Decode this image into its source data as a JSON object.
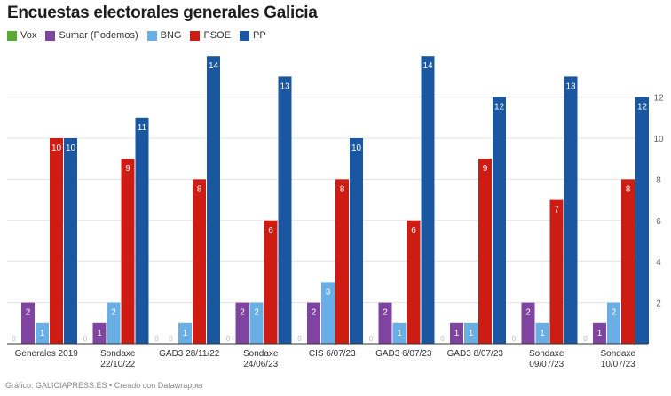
{
  "title": "Encuestas electorales generales Galicia",
  "footer": "Gráfico: GALICIAPRESS.ES • Creado con Datawrapper",
  "chart_data": {
    "type": "bar",
    "title": "Encuestas electorales generales Galicia",
    "categories": [
      "Generales 2019",
      "Sondaxe 22/10/22",
      "GAD3 28/11/22",
      "Sondaxe 24/06/23",
      "CIS 6/07/23",
      "GAD3 6/07/23",
      "GAD3 8/07/23",
      "Sondaxe 09/07/23",
      "Sondaxe 10/07/23"
    ],
    "series": [
      {
        "name": "Vox",
        "color": "#5aaa32",
        "values": [
          0,
          0,
          0,
          0,
          0,
          0,
          0,
          0,
          0
        ]
      },
      {
        "name": "Sumar (Podemos)",
        "color": "#7e44a0",
        "values": [
          2,
          1,
          0,
          2,
          2,
          2,
          1,
          2,
          1
        ]
      },
      {
        "name": "BNG",
        "color": "#6aaee6",
        "values": [
          1,
          2,
          1,
          2,
          3,
          1,
          1,
          1,
          2
        ]
      },
      {
        "name": "PSOE",
        "color": "#cc1c14",
        "values": [
          10,
          9,
          8,
          6,
          8,
          6,
          9,
          7,
          8
        ]
      },
      {
        "name": "PP",
        "color": "#1a57a0",
        "values": [
          10,
          11,
          14,
          13,
          10,
          14,
          12,
          13,
          12
        ]
      }
    ],
    "yticks": [
      2,
      4,
      6,
      8,
      10,
      12
    ],
    "ylim": [
      0,
      14
    ],
    "grid": true,
    "legend": "top-left",
    "y_axis_position": "right"
  }
}
